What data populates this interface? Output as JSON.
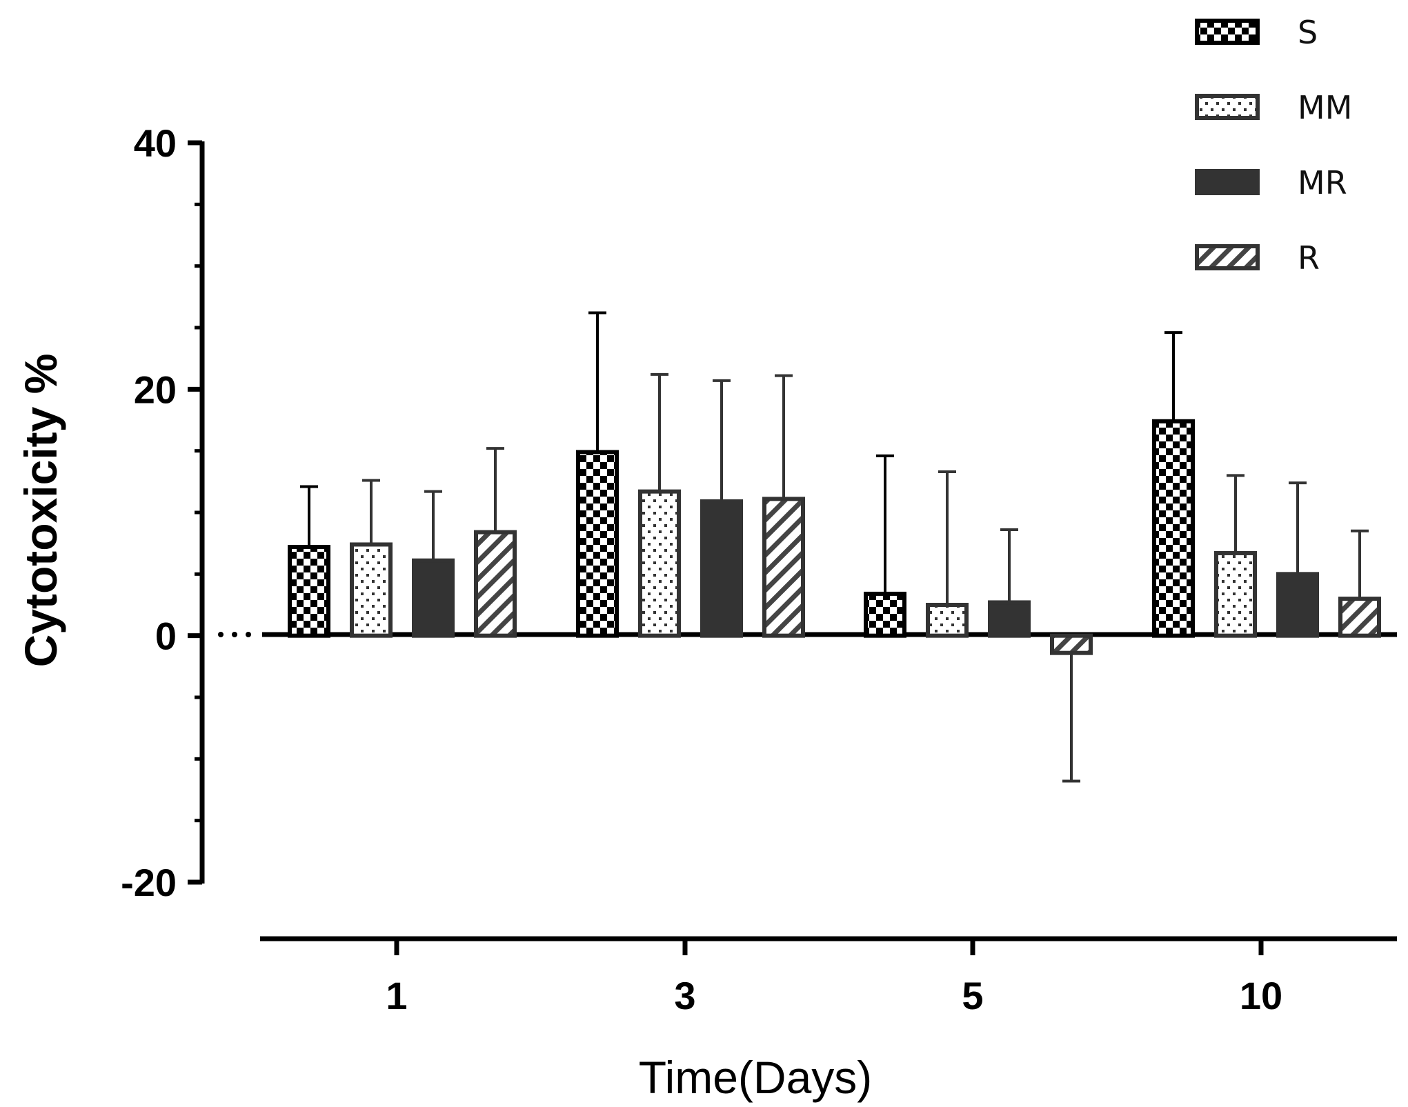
{
  "chart_data": {
    "type": "bar",
    "title": "",
    "xlabel": "Time(Days)",
    "ylabel": "Cytotoxicity %",
    "categories": [
      "1",
      "3",
      "5",
      "10"
    ],
    "ylim": [
      -20,
      40
    ],
    "yticks": [
      -20,
      0,
      20,
      40
    ],
    "ytick_labels": [
      "-20",
      "0",
      "20",
      "40"
    ],
    "series": [
      {
        "name": "S",
        "pattern": "checker",
        "values": [
          7.2,
          14.9,
          3.4,
          17.4
        ],
        "errors": [
          4.9,
          11.3,
          11.2,
          7.2
        ]
      },
      {
        "name": "MM",
        "pattern": "dots",
        "values": [
          7.4,
          11.7,
          2.5,
          6.7
        ],
        "errors": [
          5.2,
          9.5,
          10.8,
          6.3
        ]
      },
      {
        "name": "MR",
        "pattern": "solid",
        "values": [
          6.1,
          10.9,
          2.7,
          5.0
        ],
        "errors": [
          5.6,
          9.8,
          5.9,
          7.4
        ]
      },
      {
        "name": "R",
        "pattern": "hatch",
        "values": [
          8.4,
          11.1,
          -1.4,
          3.0
        ],
        "errors": [
          6.8,
          10.0,
          10.4,
          5.5
        ]
      }
    ],
    "legend_position": "top-right",
    "colors": {
      "dark": "#333333",
      "black": "#000000",
      "background": "#ffffff"
    }
  }
}
